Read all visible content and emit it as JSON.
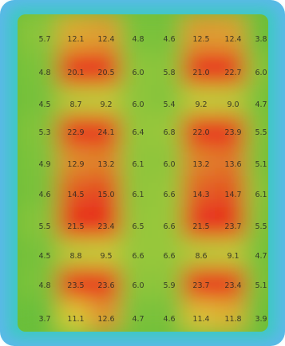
{
  "chart_data": {
    "type": "heatmap",
    "title": "",
    "xlabel": "",
    "ylabel": "",
    "rows": 10,
    "cols": 8,
    "cell_labels": [
      [
        "5.7",
        "12.1",
        "12.4",
        "4.8",
        "4.6",
        "12.5",
        "12.4",
        "3.8"
      ],
      [
        "4.8",
        "20.1",
        "20.5",
        "6.0",
        "5.8",
        "21.0",
        "22.7",
        "6.0"
      ],
      [
        "4.5",
        "8.7",
        "9.2",
        "6.0",
        "5.4",
        "9.2",
        "9.0",
        "4.7"
      ],
      [
        "5.3",
        "22.9",
        "24.1",
        "6.4",
        "6.8",
        "22.0",
        "23.9",
        "5.5"
      ],
      [
        "4.9",
        "12.9",
        "13.2",
        "6.1",
        "6.0",
        "13.2",
        "13.6",
        "5.1"
      ],
      [
        "4.6",
        "14.5",
        "15.0",
        "6.1",
        "6.6",
        "14.3",
        "14.7",
        "6.1"
      ],
      [
        "5.5",
        "21.5",
        "23.4",
        "6.5",
        "6.6",
        "21.5",
        "23.7",
        "5.5"
      ],
      [
        "4.5",
        "8.8",
        "9.5",
        "6.6",
        "6.6",
        "8.6",
        "9.1",
        "4.7"
      ],
      [
        "4.8",
        "23.5",
        "23.6",
        "6.0",
        "5.9",
        "23.7",
        "23.4",
        "5.1"
      ],
      [
        "3.7",
        "11.1",
        "12.6",
        "4.7",
        "4.6",
        "11.4",
        "11.8",
        "3.9"
      ]
    ],
    "values": [
      [
        5.7,
        12.1,
        12.4,
        4.8,
        4.6,
        12.5,
        12.4,
        3.8
      ],
      [
        4.8,
        20.1,
        20.5,
        6.0,
        5.8,
        21.0,
        22.7,
        6.0
      ],
      [
        4.5,
        8.7,
        9.2,
        6.0,
        5.4,
        9.2,
        9.0,
        4.7
      ],
      [
        5.3,
        22.9,
        24.1,
        6.4,
        6.8,
        22.0,
        23.9,
        5.5
      ],
      [
        4.9,
        12.9,
        13.2,
        6.1,
        6.0,
        13.2,
        13.6,
        5.1
      ],
      [
        4.6,
        14.5,
        15.0,
        6.1,
        6.6,
        14.3,
        14.7,
        6.1
      ],
      [
        5.5,
        21.5,
        23.4,
        6.5,
        6.6,
        21.5,
        23.7,
        5.5
      ],
      [
        4.5,
        8.8,
        9.5,
        6.6,
        6.6,
        8.6,
        9.1,
        4.7
      ],
      [
        4.8,
        23.5,
        23.6,
        6.0,
        5.9,
        23.7,
        23.4,
        5.1
      ],
      [
        3.7,
        11.1,
        12.6,
        4.7,
        4.6,
        11.4,
        11.8,
        3.9
      ]
    ],
    "colors": {
      "outer_frame": "#5ab9e8",
      "edge_glow": "#3fc8c4",
      "low": "#6bbf3a",
      "mid": "#d8d23a",
      "high": "#e8281c",
      "text": "#222222"
    },
    "grid": false,
    "legend": "none"
  }
}
